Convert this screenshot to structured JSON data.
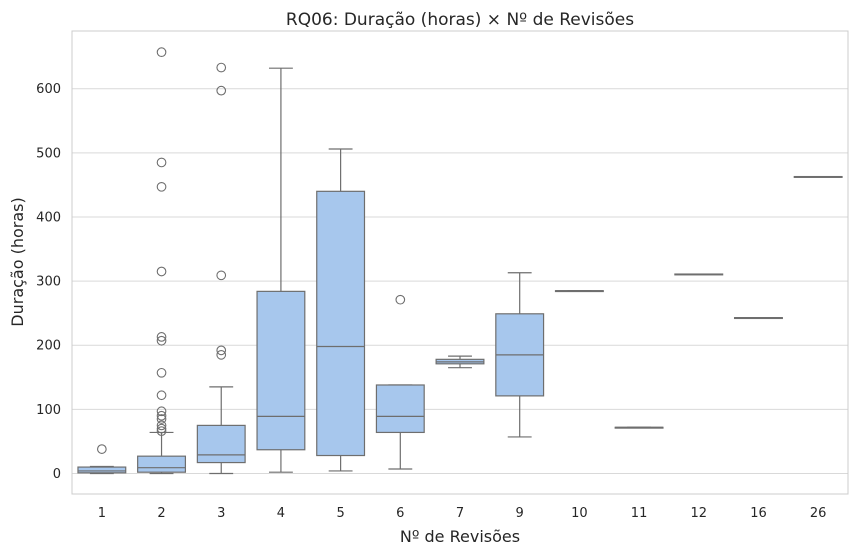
{
  "chart_data": {
    "type": "boxplot",
    "title": "RQ06: Duração (horas) × Nº de Revisões",
    "xlabel": "Nº de Revisões",
    "ylabel": "Duração (horas)",
    "ylim": [
      -32,
      690
    ],
    "yticks": [
      0,
      100,
      200,
      300,
      400,
      500,
      600
    ],
    "grid": "horizontal",
    "colors": {
      "box_fill": "#a7c7ed",
      "line": "#6e6e6e",
      "grid": "#d9d9d9",
      "frame": "#cccccc"
    },
    "boxes": [
      {
        "category": "1",
        "q1": 1,
        "median": 4,
        "q3": 10,
        "whisker_low": 0,
        "whisker_high": 11,
        "outliers": [
          38
        ]
      },
      {
        "category": "2",
        "q1": 2,
        "median": 9,
        "q3": 27,
        "whisker_low": 0,
        "whisker_high": 64,
        "outliers": [
          66,
          70,
          75,
          85,
          90,
          97,
          122,
          157,
          207,
          213,
          315,
          447,
          485,
          657
        ]
      },
      {
        "category": "3",
        "q1": 17,
        "median": 29,
        "q3": 75,
        "whisker_low": 0,
        "whisker_high": 135,
        "outliers": [
          185,
          192,
          309,
          597,
          633
        ]
      },
      {
        "category": "4",
        "q1": 37,
        "median": 89,
        "q3": 284,
        "whisker_low": 2,
        "whisker_high": 632,
        "outliers": []
      },
      {
        "category": "5",
        "q1": 28,
        "median": 198,
        "q3": 440,
        "whisker_low": 4,
        "whisker_high": 506,
        "outliers": []
      },
      {
        "category": "6",
        "q1": 64,
        "median": 89,
        "q3": 138,
        "whisker_low": 7,
        "whisker_high": 138,
        "outliers": [
          271
        ]
      },
      {
        "category": "7",
        "q1": 171,
        "median": 174,
        "q3": 178,
        "whisker_low": 165,
        "whisker_high": 183,
        "outliers": []
      },
      {
        "category": "9",
        "q1": 121,
        "median": 185,
        "q3": 249,
        "whisker_low": 57,
        "whisker_high": 313,
        "outliers": []
      },
      {
        "category": "10",
        "q1": 285,
        "median": 285,
        "q3": 285,
        "whisker_low": 285,
        "whisker_high": 285,
        "outliers": []
      },
      {
        "category": "11",
        "q1": 72,
        "median": 72,
        "q3": 72,
        "whisker_low": 72,
        "whisker_high": 72,
        "outliers": []
      },
      {
        "category": "12",
        "q1": 311,
        "median": 311,
        "q3": 311,
        "whisker_low": 311,
        "whisker_high": 311,
        "outliers": []
      },
      {
        "category": "16",
        "q1": 243,
        "median": 243,
        "q3": 243,
        "whisker_low": 243,
        "whisker_high": 243,
        "outliers": []
      },
      {
        "category": "26",
        "q1": 463,
        "median": 463,
        "q3": 463,
        "whisker_low": 463,
        "whisker_high": 463,
        "outliers": []
      }
    ]
  }
}
